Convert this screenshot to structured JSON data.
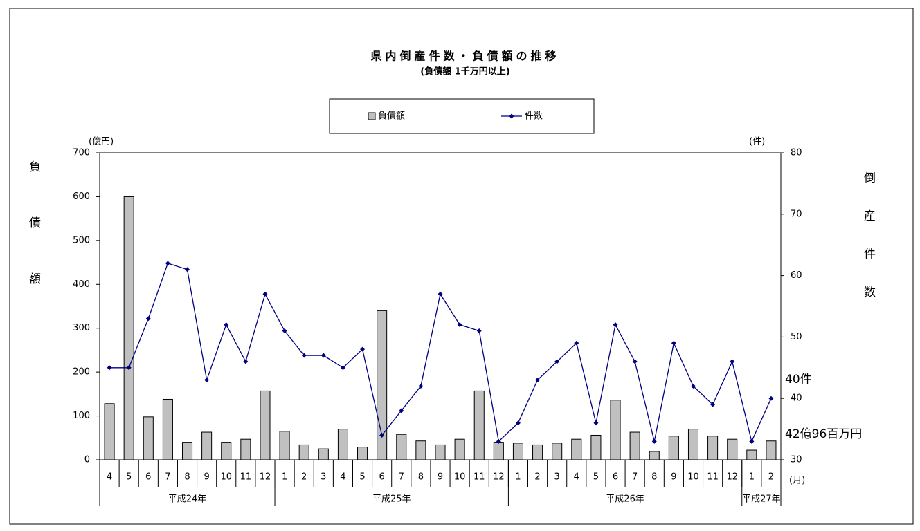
{
  "chart_data": {
    "type": "bar",
    "title": "県内倒産件数・負債額の推移",
    "subtitle": "(負債額 1千万円以上)",
    "y_label": "負債額",
    "y2_label": "倒産件数",
    "y_unit": "(億円)",
    "y2_unit": "(件)",
    "x_unit": "(月)",
    "category_groups": [
      {
        "label": "平成24年",
        "categories": [
          "4",
          "5",
          "6",
          "7",
          "8",
          "9",
          "10",
          "11",
          "12"
        ]
      },
      {
        "label": "平成25年",
        "categories": [
          "1",
          "2",
          "3",
          "4",
          "5",
          "6",
          "7",
          "8",
          "9",
          "10",
          "11",
          "12"
        ]
      },
      {
        "label": "平成26年",
        "categories": [
          "1",
          "2",
          "3",
          "4",
          "5",
          "6",
          "7",
          "8",
          "9",
          "10",
          "11",
          "12"
        ]
      },
      {
        "label": "平成27年",
        "categories": [
          "1",
          "2"
        ]
      }
    ],
    "series": [
      {
        "name": "負債額",
        "type": "bar",
        "color": "#c0c0c0",
        "values": [
          128,
          600,
          98,
          138,
          40,
          63,
          40,
          47,
          157,
          65,
          34,
          25,
          70,
          29,
          340,
          58,
          43,
          34,
          47,
          157,
          40,
          38,
          34,
          38,
          47,
          56,
          136,
          63,
          19,
          54,
          70,
          54,
          47,
          22,
          42.96
        ]
      },
      {
        "name": "件数",
        "type": "line",
        "color": "#000080",
        "axis": "y2",
        "values": [
          45,
          45,
          53,
          62,
          61,
          43,
          52,
          46,
          57,
          51,
          47,
          47,
          45,
          48,
          34,
          38,
          42,
          57,
          52,
          51,
          33,
          36,
          43,
          46,
          49,
          36,
          52,
          46,
          33,
          49,
          42,
          39,
          46,
          33,
          40
        ]
      }
    ],
    "annotations": [
      {
        "text": "40件"
      },
      {
        "text": "42億96百万円"
      }
    ],
    "ylim": [
      0,
      700
    ],
    "yticks": [
      0,
      100,
      200,
      300,
      400,
      500,
      600,
      700
    ],
    "y2lim": [
      30,
      80
    ],
    "y2ticks": [
      30,
      40,
      50,
      60,
      70,
      80
    ]
  }
}
